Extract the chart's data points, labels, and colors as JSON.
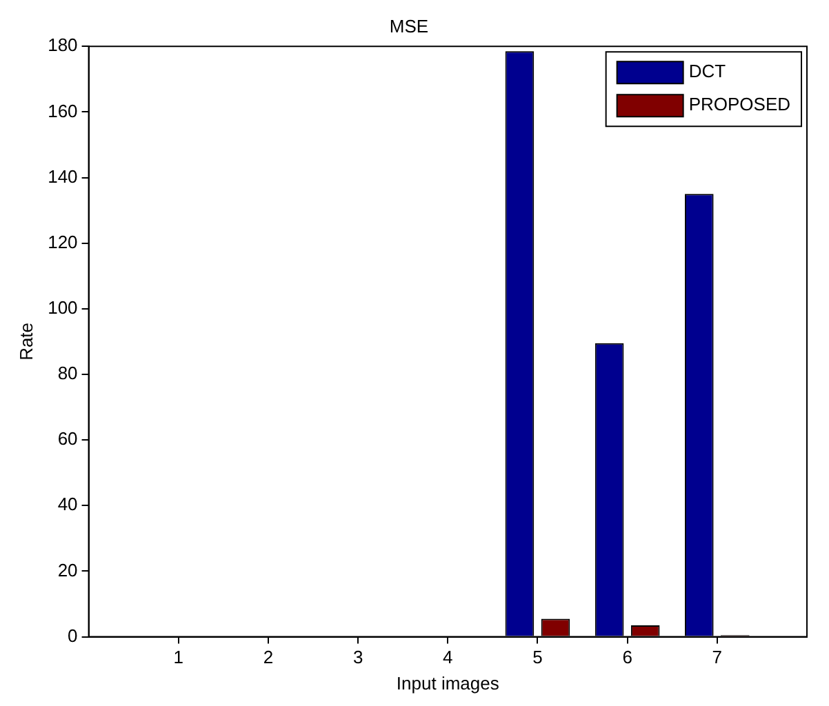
{
  "chart_data": {
    "type": "bar",
    "title": "MSE",
    "xlabel": "Input images",
    "ylabel": "Rate",
    "x": [
      1,
      2,
      3,
      4,
      5,
      6,
      7
    ],
    "series": [
      {
        "name": "DCT",
        "color": "#00008f",
        "values": [
          0,
          0,
          0,
          0,
          178.5,
          89.5,
          135
        ]
      },
      {
        "name": "PROPOSED",
        "color": "#800000",
        "values": [
          0,
          0,
          0,
          0,
          5.5,
          3.5,
          0.5
        ]
      }
    ],
    "xlim": [
      0,
      8
    ],
    "xticks": [
      1,
      2,
      3,
      4,
      5,
      6,
      7
    ],
    "ylim": [
      0,
      180
    ],
    "yticks": [
      0,
      20,
      40,
      60,
      80,
      100,
      120,
      140,
      160,
      180
    ],
    "grid": false,
    "legend": "top right"
  }
}
